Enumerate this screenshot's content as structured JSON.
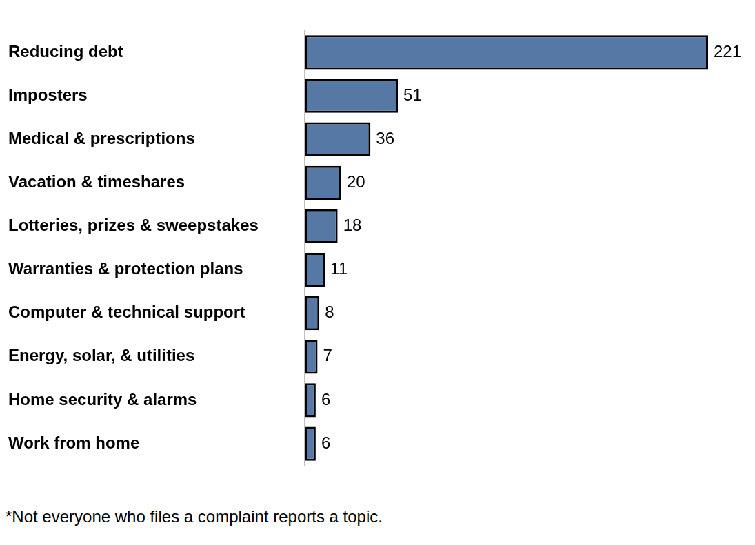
{
  "chart_data": {
    "type": "bar",
    "orientation": "horizontal",
    "categories": [
      "Reducing debt",
      "Imposters",
      "Medical & prescriptions",
      "Vacation & timeshares",
      "Lotteries, prizes & sweepstakes",
      "Warranties & protection plans",
      "Computer & technical support",
      "Energy, solar, & utilities",
      "Home security & alarms",
      "Work from home"
    ],
    "values": [
      221,
      51,
      36,
      20,
      18,
      11,
      8,
      7,
      6,
      6
    ],
    "color": "#5578a4",
    "xlim": [
      0,
      221
    ],
    "grid": false,
    "data_labels": true,
    "tick_labels": "y",
    "annotations": [
      "*Not everyone who files a complaint reports a topic."
    ]
  }
}
